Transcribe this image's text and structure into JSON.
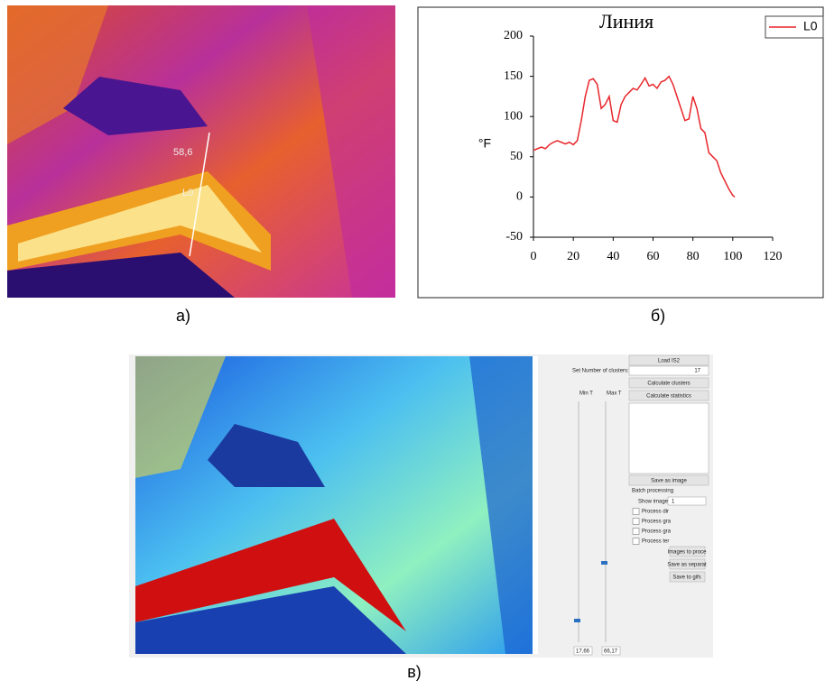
{
  "captions": [
    "а)",
    "б)",
    "в)"
  ],
  "thermal_image": {
    "temp_label": "58,6",
    "line_label": "L0"
  },
  "chart_data": {
    "type": "line",
    "title": "Линия",
    "y_label": "°F",
    "x": [
      0,
      2,
      4,
      6,
      8,
      10,
      12,
      14,
      16,
      18,
      20,
      22,
      24,
      26,
      28,
      30,
      32,
      34,
      36,
      38,
      40,
      42,
      44,
      46,
      48,
      50,
      52,
      54,
      56,
      58,
      60,
      62,
      64,
      66,
      68,
      70,
      72,
      74,
      76,
      78,
      80,
      82,
      84,
      86,
      88,
      90,
      92,
      94,
      96,
      98,
      100,
      101
    ],
    "series": [
      {
        "name": "L0",
        "color": "#e8262b",
        "values": [
          58,
          60,
          62,
          60,
          65,
          68,
          70,
          68,
          66,
          68,
          65,
          70,
          95,
          125,
          145,
          147,
          140,
          110,
          115,
          125,
          95,
          93,
          115,
          125,
          130,
          135,
          133,
          140,
          148,
          138,
          140,
          135,
          143,
          145,
          150,
          140,
          125,
          110,
          95,
          97,
          125,
          110,
          85,
          80,
          55,
          50,
          45,
          30,
          20,
          10,
          2,
          0
        ]
      }
    ],
    "xlim": [
      0,
      120
    ],
    "xticks": [
      0,
      20,
      40,
      60,
      80,
      100,
      120
    ],
    "ylim": [
      -50,
      200
    ],
    "yticks": [
      -50,
      0,
      50,
      100,
      150,
      200
    ],
    "legend": "top-right"
  },
  "ui": {
    "load": "Load IS2",
    "clusters_label": "Set Number of clusters:",
    "clusters_value": "17",
    "calc_clusters": "Calculate clusters",
    "calc_stats": "Calculate statistics",
    "min_t": "Min T",
    "max_t": "Max T",
    "save_image": "Save as image",
    "batch": "Batch processing",
    "show_image": "Show image:",
    "show_value": "1",
    "checks": [
      "Process dir",
      "Process gra",
      "Process gra",
      "Process ter"
    ],
    "buttons": [
      "Images to proce",
      "Save as separat",
      "Save to gifs"
    ],
    "min_value": "17,66",
    "max_value": "66,17"
  }
}
